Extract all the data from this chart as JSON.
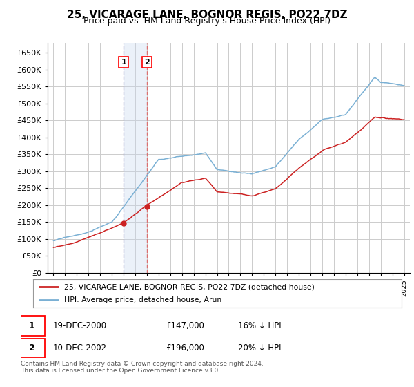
{
  "title": "25, VICARAGE LANE, BOGNOR REGIS, PO22 7DZ",
  "subtitle": "Price paid vs. HM Land Registry's House Price Index (HPI)",
  "legend_line1": "25, VICARAGE LANE, BOGNOR REGIS, PO22 7DZ (detached house)",
  "legend_line2": "HPI: Average price, detached house, Arun",
  "footer": "Contains HM Land Registry data © Crown copyright and database right 2024.\nThis data is licensed under the Open Government Licence v3.0.",
  "transaction1_date": "19-DEC-2000",
  "transaction1_price": "£147,000",
  "transaction1_hpi": "16% ↓ HPI",
  "transaction1_year": 2001.0,
  "transaction1_value": 147000,
  "transaction2_date": "10-DEC-2002",
  "transaction2_price": "£196,000",
  "transaction2_hpi": "20% ↓ HPI",
  "transaction2_year": 2003.0,
  "transaction2_value": 196000,
  "red_color": "#cc2222",
  "blue_color": "#7ab0d4",
  "vspan_color": "#c8d8ee",
  "vline2_color": "#dd6666",
  "vline1_color": "#aaaacc",
  "bg_color": "#ffffff",
  "grid_color": "#cccccc",
  "ylim": [
    0,
    680000
  ],
  "yticks": [
    0,
    50000,
    100000,
    150000,
    200000,
    250000,
    300000,
    350000,
    400000,
    450000,
    500000,
    550000,
    600000,
    650000
  ],
  "xlim_start": 1994.5,
  "xlim_end": 2025.5
}
